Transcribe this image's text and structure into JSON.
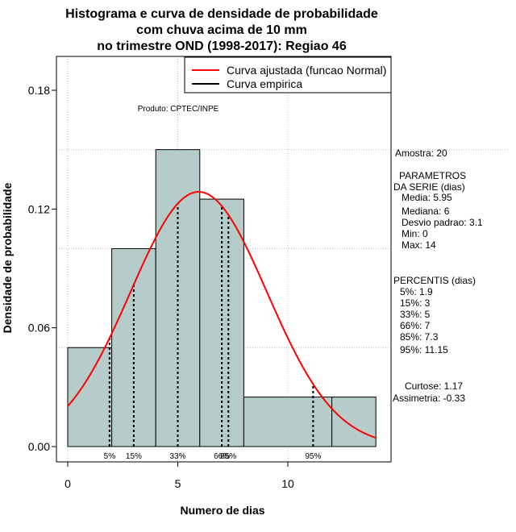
{
  "chart_data": {
    "type": "bar",
    "title_lines": [
      "Histograma e curva de densidade de probabilidade",
      "com chuva acima de 10 mm",
      "no trimestre OND (1998-2017): Regiao 46"
    ],
    "xlabel": "Numero de dias",
    "ylabel": "Densidade de probabilidade",
    "xlim": [
      -0.5,
      15
    ],
    "ylim": [
      0,
      0.195
    ],
    "x_ticks": [
      0,
      5,
      10
    ],
    "y_ticks": [
      0.0,
      0.06,
      0.12,
      0.18
    ],
    "y_tick_labels": [
      "0.00",
      "0.06",
      "0.12",
      "0.18"
    ],
    "grid": true,
    "bins": [
      {
        "from": 0,
        "to": 2,
        "density": 0.05
      },
      {
        "from": 2,
        "to": 4,
        "density": 0.1
      },
      {
        "from": 4,
        "to": 6,
        "density": 0.15
      },
      {
        "from": 6,
        "to": 8,
        "density": 0.125
      },
      {
        "from": 8,
        "to": 12,
        "density": 0.025
      },
      {
        "from": 12,
        "to": 14,
        "density": 0.025
      }
    ],
    "fitted_curve": {
      "name": "Curva ajustada (funcao Normal)",
      "mean": 5.95,
      "sd": 3.1,
      "color": "#ff0000"
    },
    "empirical_curve": {
      "name": "Curva empirica",
      "color": "#000000"
    },
    "bar_fill": "#b5cccb",
    "percentiles": [
      {
        "label": "5%",
        "value": 1.9
      },
      {
        "label": "15%",
        "value": 3
      },
      {
        "label": "33%",
        "value": 5
      },
      {
        "label": "66%",
        "value": 7
      },
      {
        "label": "85%",
        "value": 7.3
      },
      {
        "label": "95%",
        "value": 11.15
      }
    ],
    "credit": "Produto: CPTEC/INPE",
    "stats_lines": [
      "Amostra: 20",
      "PARAMETROS",
      "DA SERIE (dias)",
      "Media: 5.95",
      "Mediana: 6",
      "Desvio padrao: 3.1",
      "Min: 0",
      "Max: 14",
      "PERCENTIS (dias)",
      "5%: 1.9",
      "15%: 3",
      "33%: 5",
      "66%: 7",
      "85%: 7.3",
      "95%: 11.15",
      "Curtose: 1.17",
      "Assimetria: -0.33"
    ]
  }
}
